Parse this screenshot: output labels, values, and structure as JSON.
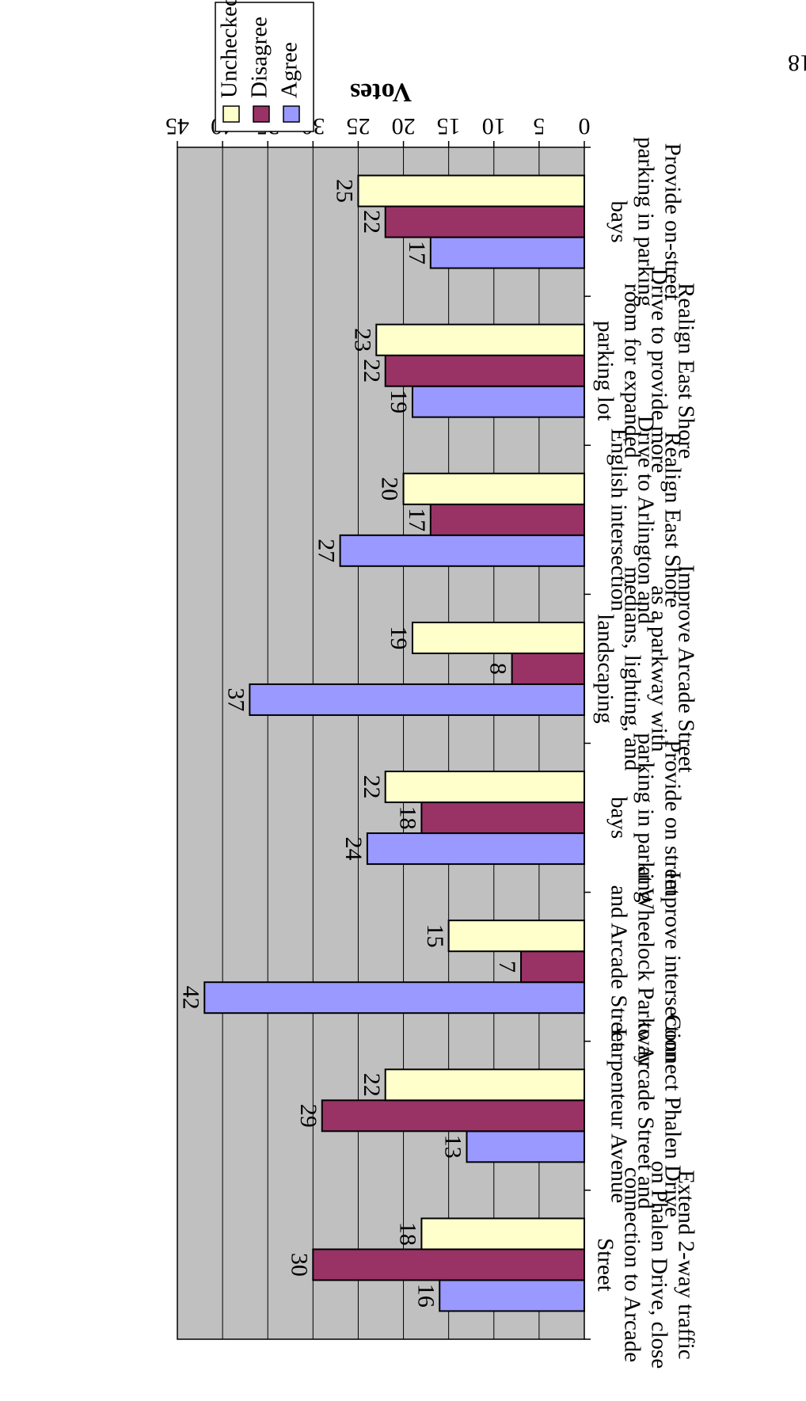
{
  "page": {
    "number": "18"
  },
  "chart_data": {
    "type": "bar",
    "orientation": "horizontal",
    "rotated_180": true,
    "title": "",
    "xlabel": "",
    "ylabel": "Votes",
    "ylim": [
      0,
      45
    ],
    "y_ticks": [
      "0",
      "5",
      "10",
      "15",
      "20",
      "25",
      "30",
      "35",
      "40",
      "45"
    ],
    "grid": true,
    "legend_position": "top-right",
    "categories": [
      [
        "Extend 2-way traffic",
        "on Phalen Drive, close",
        "connection to Arcade",
        "Street"
      ],
      [
        "Connect Phalen Drive",
        "to Arcade Street and",
        "Larpenteur Avenue"
      ],
      [
        "Improve intersection",
        "at Wheelock Parkway",
        "and Arcade Street"
      ],
      [
        "Provide on street",
        "parking in parking",
        "bays"
      ],
      [
        "Improve Arcade Street",
        "as a parkway with",
        "medians, lighting, and",
        "landscaping"
      ],
      [
        "Realign East Shore",
        "Drive to Arlington and",
        "English intersection"
      ],
      [
        "Realign East Shore",
        "Drive to provide more",
        "room for expanded",
        "parking lot"
      ],
      [
        "Provide on-street",
        "parking in parking",
        "bays"
      ]
    ],
    "series": [
      {
        "name": "Agree",
        "color": "#9999ff",
        "values": [
          16,
          13,
          42,
          24,
          37,
          27,
          19,
          17
        ]
      },
      {
        "name": "Disagree",
        "color": "#993366",
        "values": [
          30,
          29,
          7,
          18,
          8,
          17,
          22,
          22
        ]
      },
      {
        "name": "Unchecked",
        "color": "#ffffcc",
        "values": [
          18,
          22,
          15,
          22,
          19,
          20,
          23,
          25
        ]
      }
    ],
    "plot_background": "#c0c0c0"
  }
}
